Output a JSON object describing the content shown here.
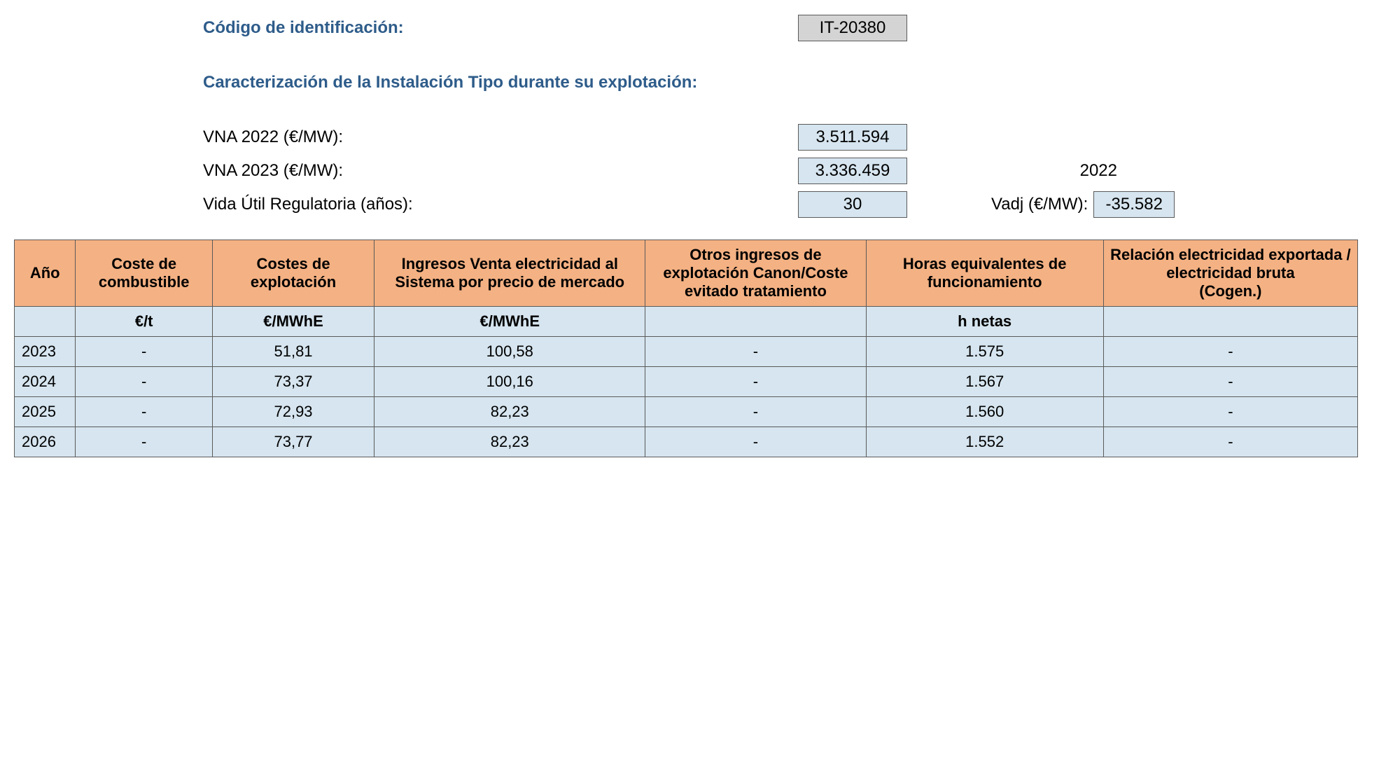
{
  "header": {
    "id_label": "Código de identificación:",
    "id_value": "IT-20380",
    "section_title": "Caracterización de la Instalación Tipo durante su explotación:",
    "vna2022_label": "VNA 2022 (€/MW):",
    "vna2022_value": "3.511.594",
    "vna2023_label": "VNA 2023 (€/MW):",
    "vna2023_value": "3.336.459",
    "year_ref": "2022",
    "vida_label": "Vida Útil Regulatoria (años):",
    "vida_value": "30",
    "vadj_label": "Vadj (€/MW):",
    "vadj_value": "-35.582"
  },
  "table": {
    "columns": [
      "Año",
      "Coste de combustible",
      "Costes de explotación",
      "Ingresos Venta electricidad al Sistema por precio de mercado",
      "Otros ingresos de explotación Canon/Coste evitado tratamiento",
      "Horas equivalentes de funcionamiento",
      "Relación electricidad exportada / electricidad bruta\n(Cogen.)"
    ],
    "units": [
      "",
      "€/t",
      "€/MWhE",
      "€/MWhE",
      "",
      "h netas",
      ""
    ],
    "rows": [
      [
        "2023",
        "-",
        "51,81",
        "100,58",
        "-",
        "1.575",
        "-"
      ],
      [
        "2024",
        "-",
        "73,37",
        "100,16",
        "-",
        "1.567",
        "-"
      ],
      [
        "2025",
        "-",
        "72,93",
        "82,23",
        "-",
        "1.560",
        "-"
      ],
      [
        "2026",
        "-",
        "73,77",
        "82,23",
        "-",
        "1.552",
        "-"
      ]
    ]
  }
}
